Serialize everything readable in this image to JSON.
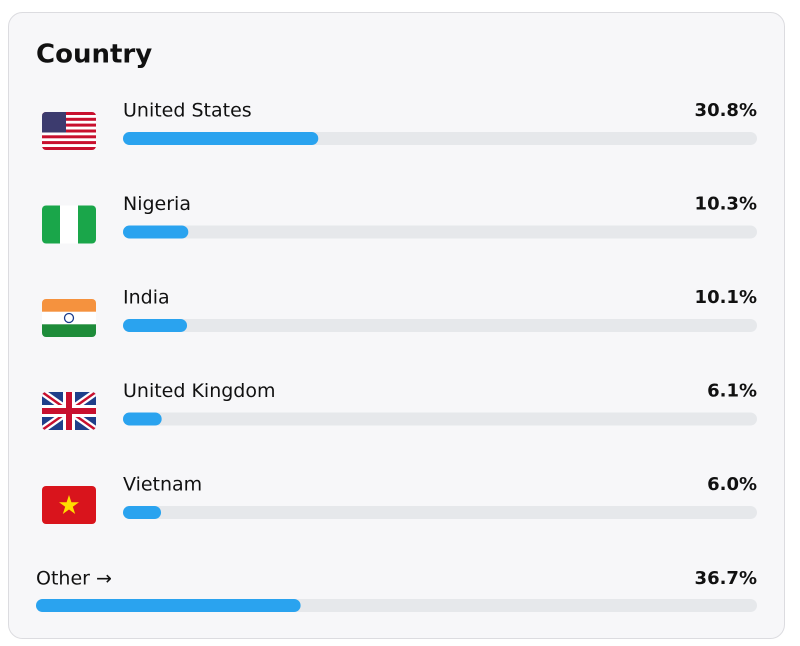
{
  "title": "Country",
  "rows": [
    {
      "name": "United States",
      "value": 30.8,
      "value_label": "30.8%"
    },
    {
      "name": "Nigeria",
      "value": 10.3,
      "value_label": "10.3%"
    },
    {
      "name": "India",
      "value": 10.1,
      "value_label": "10.1%"
    },
    {
      "name": "United Kingdom",
      "value": 6.1,
      "value_label": "6.1%"
    },
    {
      "name": "Vietnam",
      "value": 6.0,
      "value_label": "6.0%"
    }
  ],
  "other": {
    "name": "Other →",
    "value": 36.7,
    "value_label": "36.7%"
  }
}
